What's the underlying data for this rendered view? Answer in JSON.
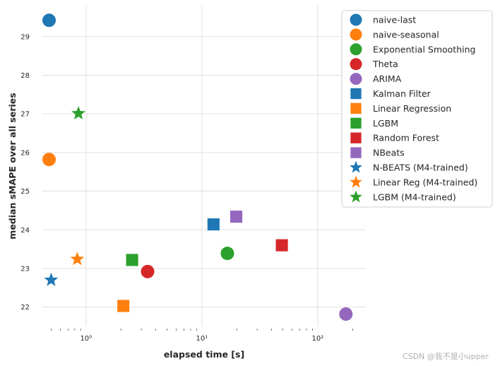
{
  "chart_data": {
    "type": "scatter",
    "title": "",
    "xlabel": "elapsed time [s]",
    "ylabel": "median sMAPE over all series",
    "xscale": "log",
    "xlim": [
      0.42,
      260
    ],
    "ylim": [
      21.5,
      29.8
    ],
    "grid": true,
    "legend_position": "top-right, outside plot",
    "y_ticks": [
      22,
      23,
      24,
      25,
      26,
      27,
      28,
      29
    ],
    "x_ticks": [
      {
        "value": 1,
        "label": "10⁰"
      },
      {
        "value": 10,
        "label": "10¹"
      },
      {
        "value": 100,
        "label": "10²"
      }
    ],
    "series": [
      {
        "name": "naive-last",
        "marker": "circle",
        "color": "#1f77b4",
        "x": 0.48,
        "y": 29.42
      },
      {
        "name": "naive-seasonal",
        "marker": "circle",
        "color": "#ff7f0e",
        "x": 0.48,
        "y": 25.82
      },
      {
        "name": "Exponential Smoothing",
        "marker": "circle",
        "color": "#2ca02c",
        "x": 16.6,
        "y": 23.39
      },
      {
        "name": "Theta",
        "marker": "circle",
        "color": "#d62728",
        "x": 3.4,
        "y": 22.92
      },
      {
        "name": "ARIMA",
        "marker": "circle",
        "color": "#9467bd",
        "x": 175,
        "y": 21.82
      },
      {
        "name": "Kalman Filter",
        "marker": "square",
        "color": "#1f77b4",
        "x": 12.6,
        "y": 24.14
      },
      {
        "name": "Linear Regression",
        "marker": "square",
        "color": "#ff7f0e",
        "x": 2.1,
        "y": 22.03
      },
      {
        "name": "LGBM",
        "marker": "square",
        "color": "#2ca02c",
        "x": 2.5,
        "y": 23.22
      },
      {
        "name": "Random Forest",
        "marker": "square",
        "color": "#d62728",
        "x": 49,
        "y": 23.6
      },
      {
        "name": "NBeats",
        "marker": "square",
        "color": "#9467bd",
        "x": 19.8,
        "y": 24.34
      },
      {
        "name": "N-BEATS (M4-trained)",
        "marker": "star",
        "color": "#1f77b4",
        "x": 0.5,
        "y": 22.7
      },
      {
        "name": "Linear Reg (M4-trained)",
        "marker": "star",
        "color": "#ff7f0e",
        "x": 0.84,
        "y": 23.24
      },
      {
        "name": "LGBM (M4-trained)",
        "marker": "star",
        "color": "#2ca02c",
        "x": 0.86,
        "y": 27.01
      }
    ]
  },
  "watermark": "CSDN @我不是小upper"
}
